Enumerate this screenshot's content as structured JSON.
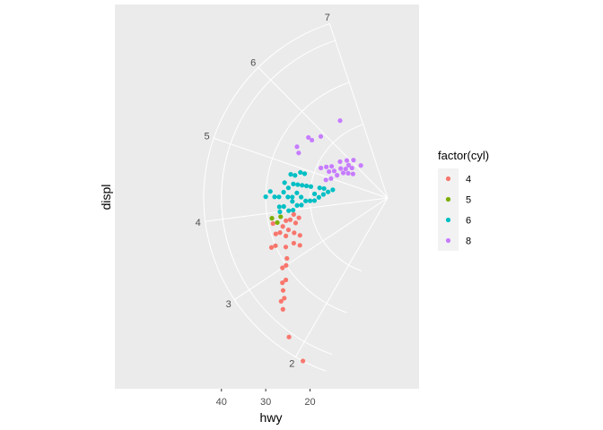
{
  "chart_data": {
    "type": "scatter",
    "coord": "polar",
    "title": "",
    "xlabel": "hwy",
    "ylabel": "displ",
    "hwy_ticks": [
      40,
      30,
      20
    ],
    "displ_ticks": [
      2,
      3,
      4,
      5,
      6,
      7
    ],
    "hwy_range": [
      12,
      44
    ],
    "displ_range": [
      1.6,
      7.0
    ],
    "grid": true,
    "panel_background": "#ebebeb",
    "legend": {
      "title": "factor(cyl)",
      "position": "right",
      "entries": [
        {
          "label": "4",
          "color": "#f8766d"
        },
        {
          "label": "5",
          "color": "#7cae00"
        },
        {
          "label": "6",
          "color": "#00bfc4"
        },
        {
          "label": "8",
          "color": "#c77cff"
        }
      ]
    },
    "series": [
      {
        "name": "4",
        "color": "#f8766d",
        "points": [
          {
            "x": 44,
            "y": 1.9
          },
          {
            "x": 41,
            "y": 2.2
          },
          {
            "x": 37,
            "y": 2.5
          },
          {
            "x": 36,
            "y": 2.6
          },
          {
            "x": 35,
            "y": 2.6
          },
          {
            "x": 34,
            "y": 2.7
          },
          {
            "x": 33,
            "y": 2.8
          },
          {
            "x": 32,
            "y": 2.8
          },
          {
            "x": 31,
            "y": 3.0
          },
          {
            "x": 30,
            "y": 3.0
          },
          {
            "x": 29,
            "y": 3.1
          },
          {
            "x": 31,
            "y": 3.4
          },
          {
            "x": 30,
            "y": 3.4
          },
          {
            "x": 28,
            "y": 3.3
          },
          {
            "x": 29,
            "y": 3.6
          },
          {
            "x": 28,
            "y": 3.6
          },
          {
            "x": 27,
            "y": 3.5
          },
          {
            "x": 27,
            "y": 3.7
          },
          {
            "x": 26,
            "y": 3.6
          },
          {
            "x": 26,
            "y": 3.8
          },
          {
            "x": 25,
            "y": 3.8
          },
          {
            "x": 24,
            "y": 3.7
          },
          {
            "x": 25,
            "y": 3.5
          },
          {
            "x": 24,
            "y": 3.9
          },
          {
            "x": 23,
            "y": 3.8
          },
          {
            "x": 29,
            "y": 3.8
          },
          {
            "x": 26,
            "y": 3.3
          },
          {
            "x": 25,
            "y": 3.2
          },
          {
            "x": 24,
            "y": 3.4
          }
        ]
      },
      {
        "name": "5",
        "color": "#7cae00",
        "points": [
          {
            "x": 28,
            "y": 3.8
          },
          {
            "x": 29,
            "y": 3.9
          },
          {
            "x": 27,
            "y": 3.9
          }
        ]
      },
      {
        "name": "6",
        "color": "#00bfc4",
        "points": [
          {
            "x": 29,
            "y": 4.4
          },
          {
            "x": 30,
            "y": 4.3
          },
          {
            "x": 28,
            "y": 4.3
          },
          {
            "x": 27,
            "y": 4.3
          },
          {
            "x": 26,
            "y": 4.4
          },
          {
            "x": 25,
            "y": 4.3
          },
          {
            "x": 24,
            "y": 4.3
          },
          {
            "x": 23,
            "y": 4.4
          },
          {
            "x": 22,
            "y": 4.3
          },
          {
            "x": 27,
            "y": 4.1
          },
          {
            "x": 26,
            "y": 4.1
          },
          {
            "x": 25,
            "y": 4.0
          },
          {
            "x": 24,
            "y": 4.0
          },
          {
            "x": 23,
            "y": 4.1
          },
          {
            "x": 22,
            "y": 4.1
          },
          {
            "x": 26,
            "y": 4.6
          },
          {
            "x": 25,
            "y": 4.5
          },
          {
            "x": 24,
            "y": 4.6
          },
          {
            "x": 23,
            "y": 4.6
          },
          {
            "x": 22,
            "y": 4.6
          },
          {
            "x": 21,
            "y": 4.6
          },
          {
            "x": 20,
            "y": 4.6
          },
          {
            "x": 19,
            "y": 4.4
          },
          {
            "x": 19,
            "y": 4.2
          },
          {
            "x": 21,
            "y": 4.2
          },
          {
            "x": 20,
            "y": 4.2
          },
          {
            "x": 18,
            "y": 4.6
          },
          {
            "x": 17,
            "y": 4.6
          },
          {
            "x": 17,
            "y": 4.4
          },
          {
            "x": 18,
            "y": 4.3
          },
          {
            "x": 16,
            "y": 4.5
          },
          {
            "x": 15,
            "y": 4.6
          },
          {
            "x": 25,
            "y": 4.8
          },
          {
            "x": 24,
            "y": 4.8
          },
          {
            "x": 23,
            "y": 4.9
          },
          {
            "x": 22,
            "y": 4.9
          },
          {
            "x": 27,
            "y": 4.0
          },
          {
            "x": 24,
            "y": 4.2
          }
        ]
      },
      {
        "name": "8",
        "color": "#c77cff",
        "points": [
          {
            "x": 26,
            "y": 5.4
          },
          {
            "x": 25,
            "y": 5.7
          },
          {
            "x": 25,
            "y": 5.3
          },
          {
            "x": 24,
            "y": 5.7
          },
          {
            "x": 23,
            "y": 5.9
          },
          {
            "x": 23,
            "y": 6.5
          },
          {
            "x": 19,
            "y": 5.2
          },
          {
            "x": 18,
            "y": 5.3
          },
          {
            "x": 17,
            "y": 5.2
          },
          {
            "x": 17,
            "y": 5.4
          },
          {
            "x": 16,
            "y": 5.3
          },
          {
            "x": 16,
            "y": 5.7
          },
          {
            "x": 15,
            "y": 5.5
          },
          {
            "x": 15,
            "y": 5.2
          },
          {
            "x": 15,
            "y": 5.9
          },
          {
            "x": 14,
            "y": 5.4
          },
          {
            "x": 14,
            "y": 5.6
          },
          {
            "x": 14,
            "y": 5.8
          },
          {
            "x": 14,
            "y": 6.1
          },
          {
            "x": 13,
            "y": 5.5
          },
          {
            "x": 13,
            "y": 5.8
          },
          {
            "x": 12,
            "y": 5.6
          },
          {
            "x": 12,
            "y": 6.2
          },
          {
            "x": 17,
            "y": 4.9
          },
          {
            "x": 16,
            "y": 5.0
          }
        ]
      }
    ]
  }
}
